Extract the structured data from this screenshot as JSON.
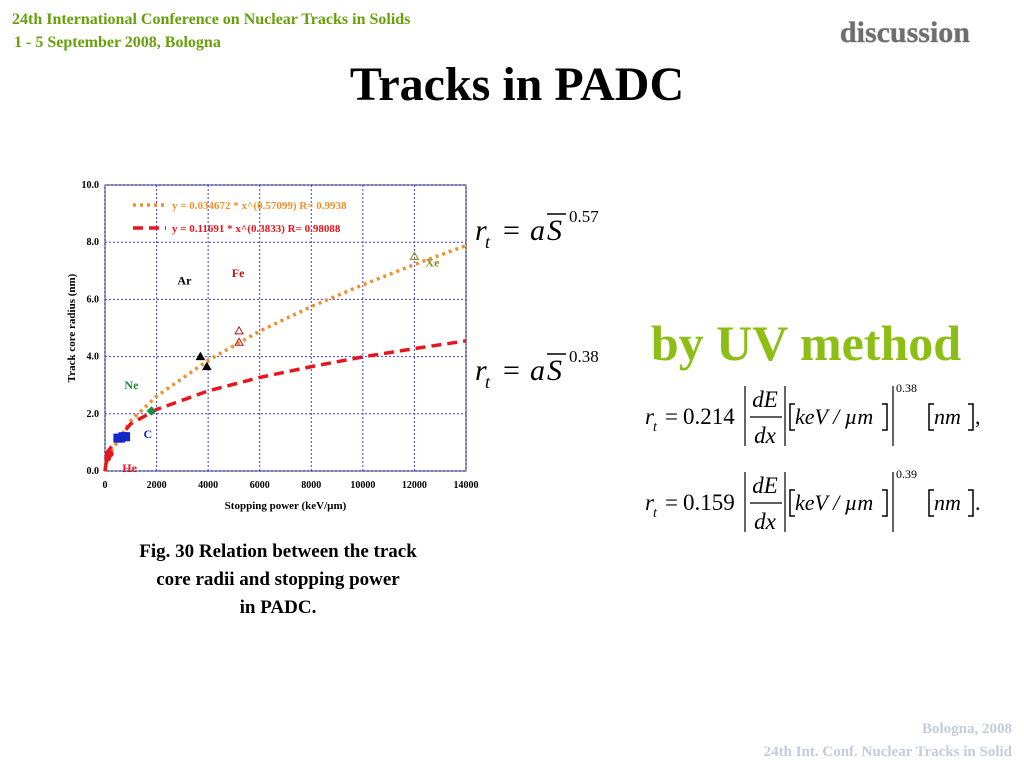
{
  "header": {
    "conference": "24th International Conference on Nuclear Tracks in Solids",
    "dates": "1 - 5 September 2008, Bologna",
    "section": "discussion",
    "title": "Tracks in PADC"
  },
  "chart_data": {
    "type": "scatter",
    "xlabel": "Stopping power (keV/µm)",
    "ylabel": "Track core radius (nm)",
    "xlim": [
      0,
      14000
    ],
    "ylim": [
      0,
      10
    ],
    "xticks": [
      0,
      2000,
      4000,
      6000,
      8000,
      10000,
      12000,
      14000
    ],
    "yticks": [
      {
        "value": 0,
        "label": "0.0"
      },
      {
        "value": 2,
        "label": "2.0"
      },
      {
        "value": 4,
        "label": "4.0"
      },
      {
        "value": 6,
        "label": "6.0"
      },
      {
        "value": 8,
        "label": "8.0"
      },
      {
        "value": 10,
        "label": "10.0"
      }
    ],
    "grid": true,
    "series": [
      {
        "name": "y = 0.034672 * x^(0.57099)   R= 0.9938",
        "color": "#f0902c",
        "x": [
          0,
          100,
          1000,
          2000,
          4000,
          6000,
          8000,
          10000,
          12000,
          14000
        ],
        "values": [
          0,
          0.48,
          1.76,
          2.61,
          3.87,
          4.89,
          5.75,
          6.51,
          7.22,
          7.88
        ]
      },
      {
        "name": "y = 0.11691 * x^(0.3833)   R= 0.98088",
        "color": "#e8141e",
        "x": [
          0,
          100,
          1000,
          2000,
          4000,
          6000,
          8000,
          10000,
          12000,
          14000
        ],
        "values": [
          0,
          0.68,
          1.65,
          2.15,
          2.8,
          3.27,
          3.65,
          3.99,
          4.28,
          4.55
        ]
      }
    ],
    "points": [
      {
        "label": "He",
        "color": "#e8141e",
        "marker": "circle",
        "x": [
          100,
          200
        ],
        "values": [
          0.45,
          0.6
        ]
      },
      {
        "label": "C",
        "color": "#1428c8",
        "marker": "square",
        "x": [
          500,
          600,
          700,
          800
        ],
        "values": [
          1.15,
          1.15,
          1.2,
          1.2
        ]
      },
      {
        "label": "Ne",
        "color": "#1e8c3c",
        "marker": "diamond",
        "x": [
          1800
        ],
        "values": [
          2.1
        ]
      },
      {
        "label": "Ar",
        "color": "#000000",
        "marker": "triangle",
        "x": [
          3700,
          3950
        ],
        "values": [
          4.0,
          3.65
        ]
      },
      {
        "label": "Fe",
        "color": "#b4141e",
        "marker": "open-triangle",
        "x": [
          5200,
          5200
        ],
        "values": [
          4.9,
          4.5
        ]
      },
      {
        "label": "Xe",
        "color": "#8c8c14",
        "marker": "open-triangle",
        "x": [
          12000
        ],
        "values": [
          7.5
        ]
      }
    ]
  },
  "caption": "Fig. 30 Relation between the track core radii and stopping power in PADC.",
  "equations": [
    {
      "lhs": "r",
      "sub": "t",
      "rel": "=",
      "coef": "a",
      "var": "S",
      "exponent": "0.57"
    },
    {
      "lhs": "r",
      "sub": "t",
      "rel": "=",
      "coef": "a",
      "var": "S",
      "exponent": "0.38"
    }
  ],
  "method": "by UV method",
  "formulas": [
    {
      "lhs": "r",
      "sub": "t",
      "rel": "=",
      "coef": "0.214",
      "num": "dE",
      "den": "dx",
      "unit": "keV / µm",
      "exponent": "0.38",
      "result_unit": "nm",
      "end": ","
    },
    {
      "lhs": "r",
      "sub": "t",
      "rel": "=",
      "coef": "0.159",
      "num": "dE",
      "den": "dx",
      "unit": "keV / µm",
      "exponent": "0.39",
      "result_unit": "nm",
      "end": "."
    }
  ],
  "footer": {
    "place": "Bologna,  2008",
    "conference": "24th Int. Conf. Nuclear Tracks in Solid"
  }
}
